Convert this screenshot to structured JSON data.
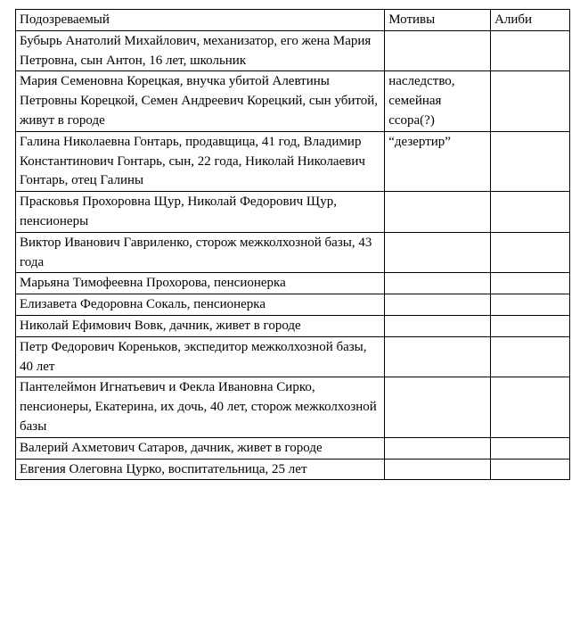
{
  "headers": [
    "Подозреваемый",
    "Мотивы",
    "Алиби"
  ],
  "rows": [
    {
      "suspect": "Бубырь Анатолий Михайлович, механизатор, его жена Мария Петровна, сын Антон, 16 лет, школьник",
      "motive": "",
      "alibi": ""
    },
    {
      "suspect": "Мария Семеновна Корецкая, внучка убитой Алевтины Петровны Корецкой,  Семен Андреевич Корецкий, сын убитой, живут в городе",
      "motive": "наследство, семейная ссора(?)",
      "alibi": ""
    },
    {
      "suspect": "Галина Николаевна Гонтарь, продавщица, 41 год, Владимир Константинович Гонтарь, сын, 22 года, Николай Николаевич Гонтарь, отец Галины",
      "motive": "“дезертир”",
      "alibi": ""
    },
    {
      "suspect": "Прасковья Прохоровна Щур, Николай Федорович Щур, пенсионеры",
      "motive": "",
      "alibi": ""
    },
    {
      "suspect": "Виктор Иванович Гавриленко, сторож межколхозной базы, 43 года",
      "motive": "",
      "alibi": ""
    },
    {
      "suspect": "Марьяна Тимофеевна Прохорова, пенсионерка",
      "motive": "",
      "alibi": ""
    },
    {
      "suspect": "Елизавета Федоровна Сокаль, пенсионерка",
      "motive": "",
      "alibi": ""
    },
    {
      "suspect": "Николай Ефимович Вовк, дачник, живет в городе",
      "motive": "",
      "alibi": ""
    },
    {
      "suspect": "Петр Федорович Кореньков, экспедитор межколхозной базы, 40 лет",
      "motive": "",
      "alibi": ""
    },
    {
      "suspect": "Пантелеймон Игнатьевич и Фекла Ивановна Сирко, пенсионеры, Екатерина, их дочь, 40 лет, сторож межколхозной базы",
      "motive": "",
      "alibi": ""
    },
    {
      "suspect": "Валерий Ахметович Сатаров, дачник, живет в городе",
      "motive": "",
      "alibi": ""
    },
    {
      "suspect": "Евгения Олеговна Цурко, воспитательница, 25 лет",
      "motive": "",
      "alibi": ""
    }
  ]
}
